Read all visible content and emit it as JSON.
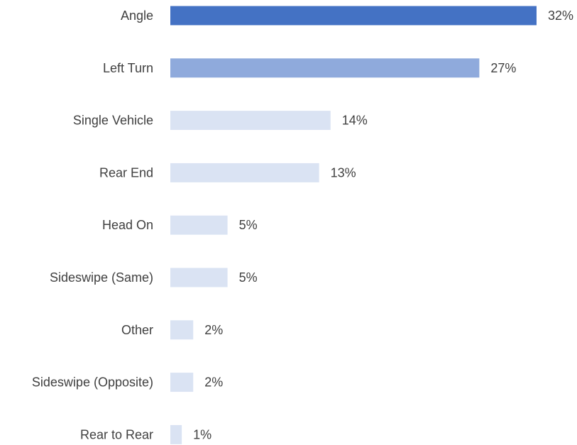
{
  "chart_data": {
    "type": "bar",
    "orientation": "horizontal",
    "categories": [
      "Angle",
      "Left Turn",
      "Single Vehicle",
      "Rear End",
      "Head On",
      "Sideswipe (Same)",
      "Other",
      "Sideswipe (Opposite)",
      "Rear to Rear"
    ],
    "values": [
      32,
      27,
      14,
      13,
      5,
      5,
      2,
      2,
      1
    ],
    "value_labels": [
      "32%",
      "27%",
      "14%",
      "13%",
      "5%",
      "5%",
      "2%",
      "2%",
      "1%"
    ],
    "value_unit": "%",
    "bar_colors": [
      "#4472c4",
      "#8faadc",
      "#dae3f3",
      "#dae3f3",
      "#dae3f3",
      "#dae3f3",
      "#dae3f3",
      "#dae3f3",
      "#dae3f3"
    ],
    "text_color": "#404040",
    "xlim": [
      0,
      32
    ],
    "grid": false,
    "legend": "none",
    "title": "",
    "xlabel": "",
    "ylabel": ""
  }
}
